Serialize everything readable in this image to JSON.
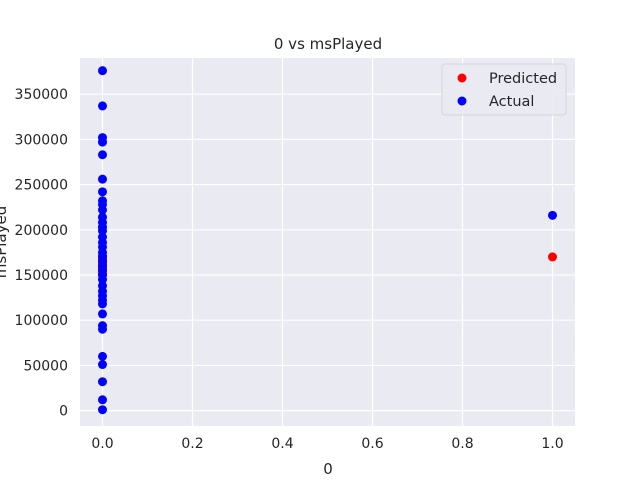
{
  "chart_data": {
    "type": "scatter",
    "title": "0 vs msPlayed",
    "xlabel": "0",
    "ylabel": "msPlayed",
    "xlim": [
      -0.05,
      1.05
    ],
    "ylim": [
      -17000,
      390000
    ],
    "x_ticks": [
      0.0,
      0.2,
      0.4,
      0.6,
      0.8,
      1.0
    ],
    "x_tick_labels": [
      "0.0",
      "0.2",
      "0.4",
      "0.6",
      "0.8",
      "1.0"
    ],
    "y_ticks": [
      0,
      50000,
      100000,
      150000,
      200000,
      250000,
      300000,
      350000
    ],
    "y_tick_labels": [
      "0",
      "50000",
      "100000",
      "150000",
      "200000",
      "250000",
      "300000",
      "350000"
    ],
    "grid": true,
    "legend_position": "top-right",
    "series": [
      {
        "name": "Predicted",
        "color": "#ff0000",
        "points": [
          [
            0,
            150000
          ],
          [
            0,
            152000
          ],
          [
            0,
            154000
          ],
          [
            0,
            155500
          ],
          [
            0,
            157000
          ],
          [
            0,
            158500
          ],
          [
            0,
            160000
          ],
          [
            0,
            161500
          ],
          [
            0,
            163000
          ],
          [
            0,
            164500
          ],
          [
            0,
            166000
          ],
          [
            0,
            167500
          ],
          [
            0,
            169000
          ],
          [
            0,
            171000
          ],
          [
            1,
            170000
          ]
        ]
      },
      {
        "name": "Actual",
        "color": "#0000ff",
        "points": [
          [
            0,
            376000
          ],
          [
            0,
            337000
          ],
          [
            0,
            302000
          ],
          [
            0,
            297000
          ],
          [
            0,
            283000
          ],
          [
            0,
            256000
          ],
          [
            0,
            242000
          ],
          [
            0,
            232000
          ],
          [
            0,
            228000
          ],
          [
            0,
            222000
          ],
          [
            0,
            214000
          ],
          [
            0,
            208000
          ],
          [
            0,
            203000
          ],
          [
            0,
            199000
          ],
          [
            0,
            192000
          ],
          [
            0,
            186000
          ],
          [
            0,
            181000
          ],
          [
            0,
            175000
          ],
          [
            0,
            170000
          ],
          [
            0,
            165000
          ],
          [
            0,
            160000
          ],
          [
            0,
            155000
          ],
          [
            0,
            150000
          ],
          [
            0,
            145000
          ],
          [
            0,
            138000
          ],
          [
            0,
            132000
          ],
          [
            0,
            127000
          ],
          [
            0,
            122000
          ],
          [
            0,
            118000
          ],
          [
            0,
            107000
          ],
          [
            0,
            94000
          ],
          [
            0,
            90000
          ],
          [
            0,
            60000
          ],
          [
            0,
            51000
          ],
          [
            0,
            32000
          ],
          [
            0,
            12000
          ],
          [
            0,
            1000
          ],
          [
            1,
            216000
          ]
        ]
      }
    ]
  }
}
